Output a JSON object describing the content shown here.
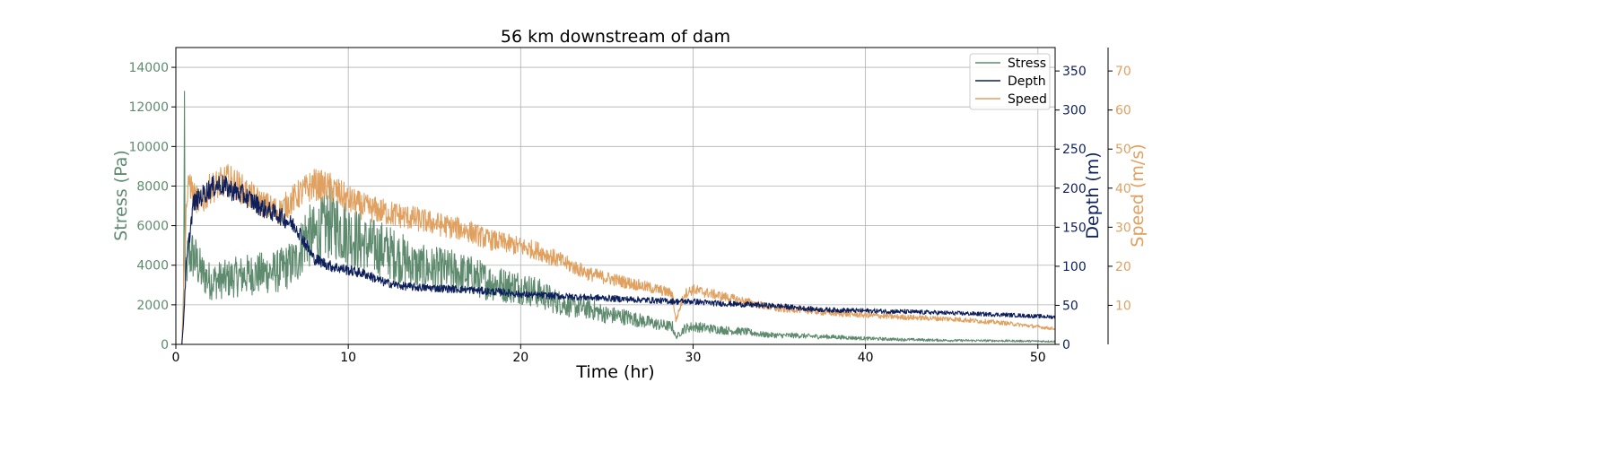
{
  "chart_data": {
    "type": "line",
    "title": "56 km downstream of dam",
    "xlabel": "Time (hr)",
    "xlim": [
      0,
      51
    ],
    "xticks": [
      0,
      10,
      20,
      30,
      40,
      50
    ],
    "grid": true,
    "legend_position": "top-right",
    "axes": {
      "stress": {
        "label": "Stress (Pa)",
        "ylim": [
          0,
          15000
        ],
        "ticks": [
          0,
          2000,
          4000,
          6000,
          8000,
          10000,
          12000,
          14000
        ],
        "color": "#5e8a6e",
        "side": "left"
      },
      "depth": {
        "label": "Depth (m)",
        "ylim": [
          0,
          380
        ],
        "ticks": [
          0,
          50,
          100,
          150,
          200,
          250,
          300,
          350
        ],
        "color": "#0d1f5c",
        "side": "right"
      },
      "speed": {
        "label": "Speed (m/s)",
        "ylim": [
          0,
          76
        ],
        "ticks": [
          10,
          20,
          30,
          40,
          50,
          60,
          70
        ],
        "color": "#e0a060",
        "side": "right-outer"
      }
    },
    "series": [
      {
        "name": "Stress",
        "axis": "stress",
        "color": "#5e8a6e",
        "noise": 0.3,
        "x": [
          0,
          0.35,
          0.45,
          0.5,
          0.55,
          0.7,
          1,
          1.5,
          2,
          3,
          4,
          5,
          6,
          7,
          7.5,
          8,
          9,
          10,
          11,
          12,
          13,
          14,
          15,
          16,
          17,
          18,
          19,
          20,
          21,
          22,
          23,
          24,
          25,
          26,
          27,
          28,
          28.8,
          29,
          29.5,
          30,
          31,
          32,
          33,
          34,
          35,
          36,
          37,
          38,
          40,
          42,
          45,
          48,
          51
        ],
        "y": [
          0,
          0,
          2000,
          11700,
          3000,
          4500,
          4500,
          3600,
          3200,
          3300,
          3500,
          3600,
          3700,
          4200,
          5500,
          5400,
          6200,
          5600,
          5000,
          4800,
          4400,
          3900,
          3800,
          3700,
          3500,
          3200,
          3000,
          2900,
          2600,
          2200,
          1900,
          1800,
          1500,
          1400,
          1200,
          1000,
          900,
          350,
          800,
          900,
          800,
          700,
          650,
          500,
          450,
          450,
          400,
          380,
          300,
          250,
          200,
          180,
          150
        ]
      },
      {
        "name": "Depth",
        "axis": "depth",
        "color": "#0d1f5c",
        "noise": 0.07,
        "x": [
          0,
          0.35,
          0.45,
          0.6,
          1,
          1.5,
          2,
          2.5,
          3,
          3.5,
          4,
          5,
          6,
          7,
          8,
          9,
          10,
          11,
          12,
          13,
          14,
          15,
          16,
          17,
          18,
          19,
          20,
          21,
          22,
          23,
          24,
          25,
          26,
          27,
          28,
          29,
          30,
          31,
          32,
          33,
          34,
          35,
          36,
          37,
          38,
          40,
          42,
          45,
          48,
          51
        ],
        "y": [
          0,
          0,
          30,
          100,
          180,
          190,
          200,
          205,
          200,
          195,
          190,
          175,
          165,
          150,
          110,
          100,
          95,
          90,
          80,
          75,
          73,
          72,
          71,
          70,
          68,
          67,
          64,
          63,
          62,
          61,
          60,
          59,
          58,
          57,
          56,
          55,
          55,
          53,
          52,
          51,
          50,
          49,
          47,
          45,
          44,
          43,
          42,
          40,
          38,
          35
        ]
      },
      {
        "name": "Speed",
        "axis": "speed",
        "color": "#e0a060",
        "noise": 0.1,
        "x": [
          0,
          0.35,
          0.45,
          0.6,
          0.8,
          1,
          1.5,
          2,
          2.5,
          3,
          3.5,
          4,
          5,
          6,
          7,
          8,
          9,
          10,
          11,
          12,
          13,
          14,
          15,
          16,
          17,
          18,
          19,
          20,
          21,
          22,
          23,
          24,
          25,
          26,
          27,
          28,
          28.8,
          29,
          29.5,
          30,
          31,
          32,
          33,
          34,
          35,
          36,
          37,
          38,
          40,
          42,
          45,
          48,
          51
        ],
        "y": [
          0,
          0,
          15,
          35,
          42,
          38,
          36,
          40,
          41,
          42,
          41,
          39,
          36,
          34,
          38,
          41,
          40,
          37,
          35,
          34,
          33,
          32,
          31,
          30,
          29,
          27,
          26,
          25,
          24,
          22,
          20,
          18,
          17,
          16,
          15,
          14,
          13,
          6,
          13,
          14,
          13,
          12,
          11,
          10,
          9,
          9,
          8.5,
          8,
          7.5,
          7,
          6.5,
          5.5,
          4
        ]
      }
    ]
  }
}
